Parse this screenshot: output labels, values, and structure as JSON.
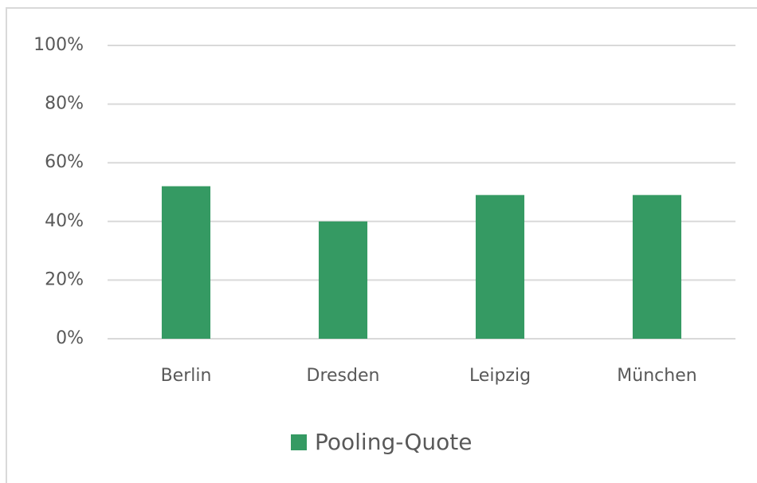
{
  "chart_data": {
    "type": "bar",
    "categories": [
      "Berlin",
      "Dresden",
      "Leipzig",
      "München"
    ],
    "series": [
      {
        "name": "Pooling-Quote",
        "color": "#359a63",
        "values": [
          52,
          40,
          49,
          49
        ]
      }
    ],
    "ylim": [
      0,
      100
    ],
    "yticks": [
      {
        "value": 0,
        "label": "0%"
      },
      {
        "value": 20,
        "label": "20%"
      },
      {
        "value": 40,
        "label": "40%"
      },
      {
        "value": 60,
        "label": "60%"
      },
      {
        "value": 80,
        "label": "80%"
      },
      {
        "value": 100,
        "label": "100%"
      }
    ],
    "grid": true,
    "legend": "bottom"
  }
}
